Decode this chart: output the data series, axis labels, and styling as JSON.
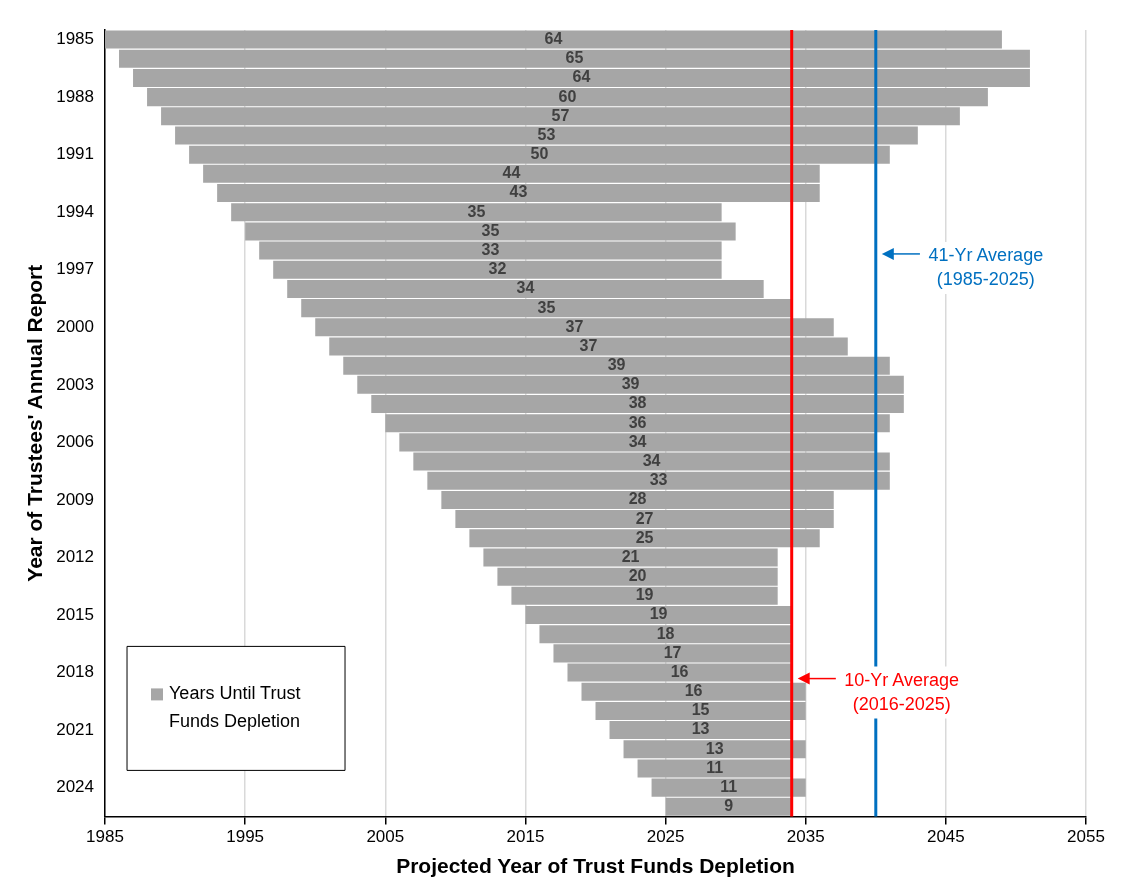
{
  "chart_data": {
    "type": "bar",
    "orientation": "horizontal",
    "xlabel": "Projected Year of Trust Funds Depletion",
    "ylabel": "Year of Trustees' Annual Report",
    "categories": [
      "1985",
      null,
      null,
      "1988",
      null,
      null,
      "1991",
      null,
      null,
      "1994",
      null,
      null,
      "1997",
      null,
      null,
      "2000",
      null,
      null,
      "2003",
      null,
      null,
      "2006",
      null,
      null,
      "2009",
      null,
      null,
      "2012",
      null,
      null,
      "2015",
      null,
      null,
      "2018",
      null,
      null,
      "2021",
      null,
      null,
      "2024",
      null
    ],
    "series": [
      {
        "name": "Years Until Trust Funds Depletion",
        "color": "#a6a6a6",
        "base": [
          1985,
          1986,
          1987,
          1988,
          1989,
          1990,
          1991,
          1992,
          1993,
          1994,
          1995,
          1996,
          1997,
          1998,
          1999,
          2000,
          2001,
          2002,
          2003,
          2004,
          2005,
          2006,
          2007,
          2008,
          2009,
          2010,
          2011,
          2012,
          2013,
          2014,
          2015,
          2016,
          2017,
          2018,
          2019,
          2020,
          2021,
          2022,
          2023,
          2024,
          2025
        ],
        "values": [
          64,
          65,
          64,
          60,
          57,
          53,
          50,
          44,
          43,
          35,
          35,
          33,
          32,
          34,
          35,
          37,
          37,
          39,
          39,
          38,
          36,
          34,
          34,
          33,
          28,
          27,
          25,
          21,
          20,
          19,
          19,
          18,
          17,
          16,
          16,
          15,
          13,
          13,
          11,
          11,
          9
        ]
      }
    ],
    "xlim": [
      1985,
      2055
    ],
    "xticks": [
      1985,
      1995,
      2005,
      2015,
      2025,
      2035,
      2045,
      2055
    ],
    "grid": "x",
    "legend": "bottom left",
    "data_labels": true,
    "ref_lines": [
      {
        "axis": "x",
        "value": 2040,
        "label": "41-Yr Average\n(1985-2025)",
        "color": "#0070c0"
      },
      {
        "axis": "x",
        "value": 2034,
        "label": "10-Yr Average\n(2016-2025)",
        "color": "#ff0000"
      }
    ]
  }
}
